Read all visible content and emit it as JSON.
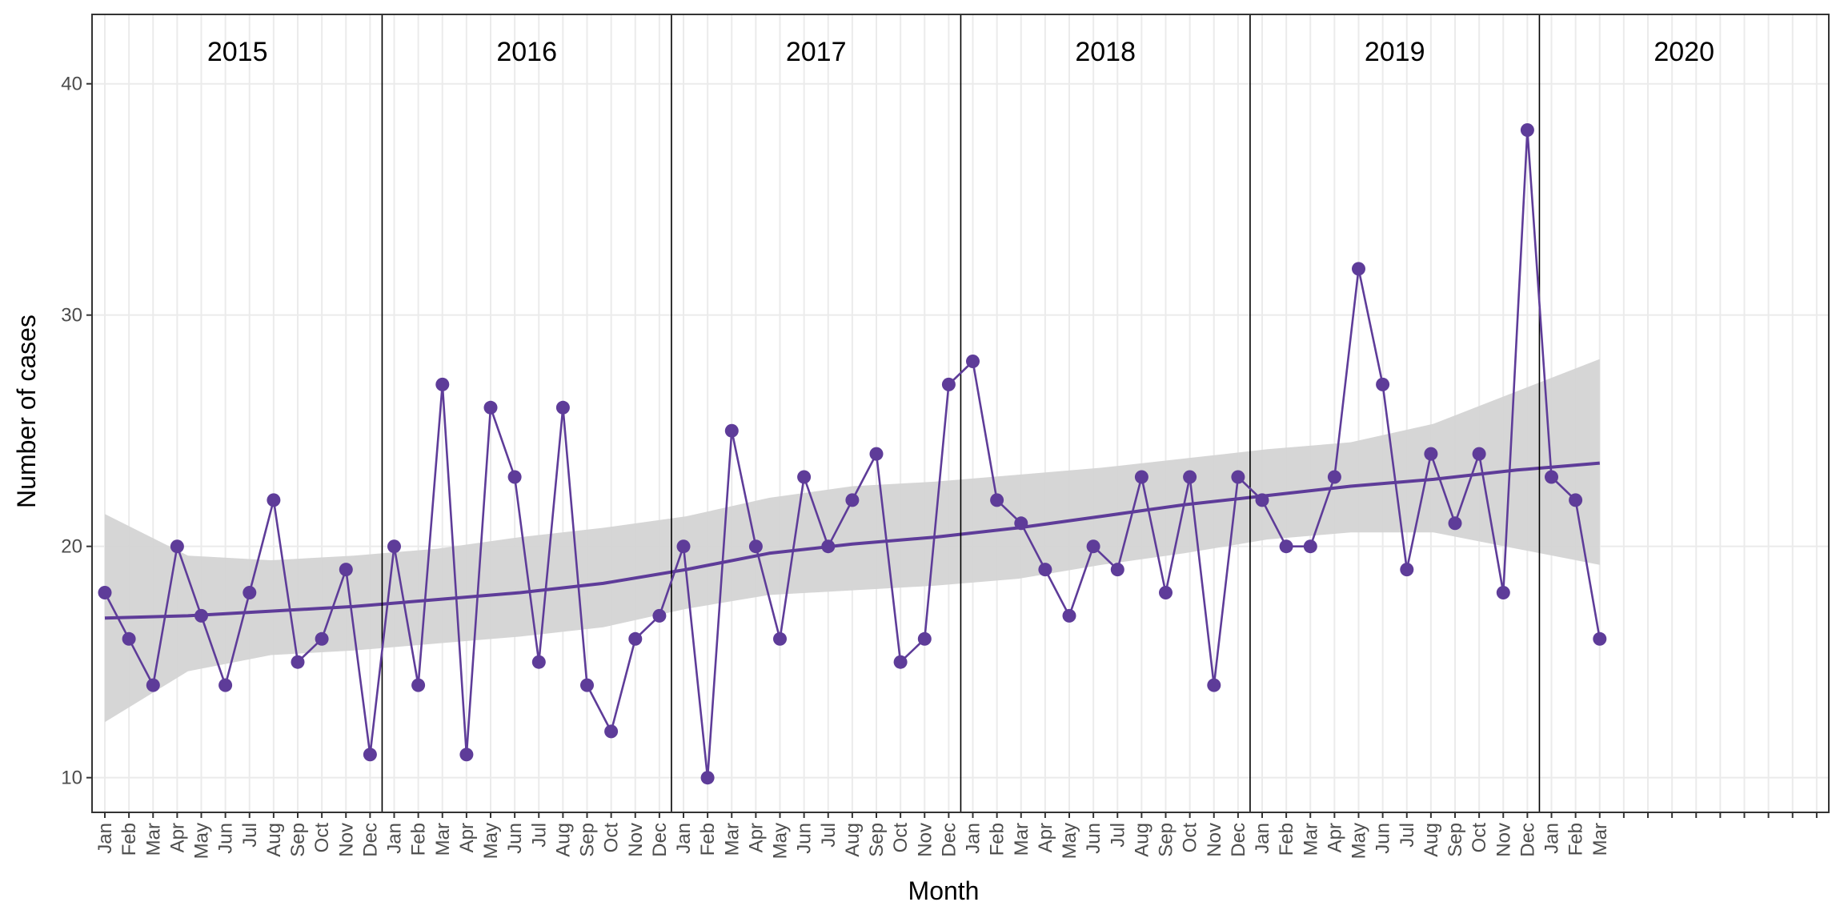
{
  "chart_data": {
    "type": "line",
    "title": "",
    "xlabel": "Month",
    "ylabel": "Number of cases",
    "ylim": [
      8.5,
      43
    ],
    "yticks": [
      10,
      20,
      30,
      40
    ],
    "grid": true,
    "legend": "none",
    "facet_years": [
      "2015",
      "2016",
      "2017",
      "2018",
      "2019",
      "2020"
    ],
    "month_labels": [
      "Jan",
      "Feb",
      "Mar",
      "Apr",
      "May",
      "Jun",
      "Jul",
      "Aug",
      "Sep",
      "Oct",
      "Nov",
      "Dec"
    ],
    "months_shown_2020": [
      "Jan",
      "Feb",
      "Mar"
    ],
    "series": [
      {
        "values": [
          18,
          16,
          14,
          20,
          17,
          14,
          18,
          22,
          15,
          16,
          19,
          11,
          20,
          14,
          27,
          11,
          26,
          23,
          15,
          26,
          14,
          12,
          16,
          17,
          20,
          10,
          25,
          20,
          16,
          23,
          20,
          22,
          24,
          15,
          16,
          27,
          28,
          22,
          21,
          19,
          17,
          20,
          19,
          23,
          18,
          23,
          14,
          23,
          22,
          20,
          20,
          23,
          32,
          27,
          19,
          24,
          21,
          24,
          18,
          38,
          23,
          22,
          16
        ]
      }
    ],
    "trend": {
      "values": [
        16.9,
        17.0,
        17.2,
        17.4,
        17.7,
        18.0,
        18.4,
        19.0,
        19.7,
        20.1,
        20.4,
        20.8,
        21.3,
        21.8,
        22.2,
        22.6,
        22.9,
        23.3,
        23.6
      ],
      "ci_lower": [
        12.4,
        14.6,
        15.3,
        15.5,
        15.8,
        16.1,
        16.5,
        17.3,
        17.9,
        18.1,
        18.3,
        18.6,
        19.2,
        19.7,
        20.3,
        20.6,
        20.6,
        19.9,
        19.2
      ],
      "ci_upper": [
        21.4,
        19.6,
        19.4,
        19.6,
        19.9,
        20.4,
        20.8,
        21.3,
        22.1,
        22.6,
        22.8,
        23.1,
        23.4,
        23.8,
        24.2,
        24.5,
        25.3,
        26.7,
        28.1
      ]
    },
    "colors": {
      "line": "#5e3c99",
      "point": "#5e3c99",
      "trend": "#5e3c99",
      "ci_band": "#d4d4d4",
      "grid_major": "#ebebeb",
      "grid_minor": "#f3f3f3",
      "panel_border": "#333333",
      "year_separator": "#000000"
    }
  }
}
